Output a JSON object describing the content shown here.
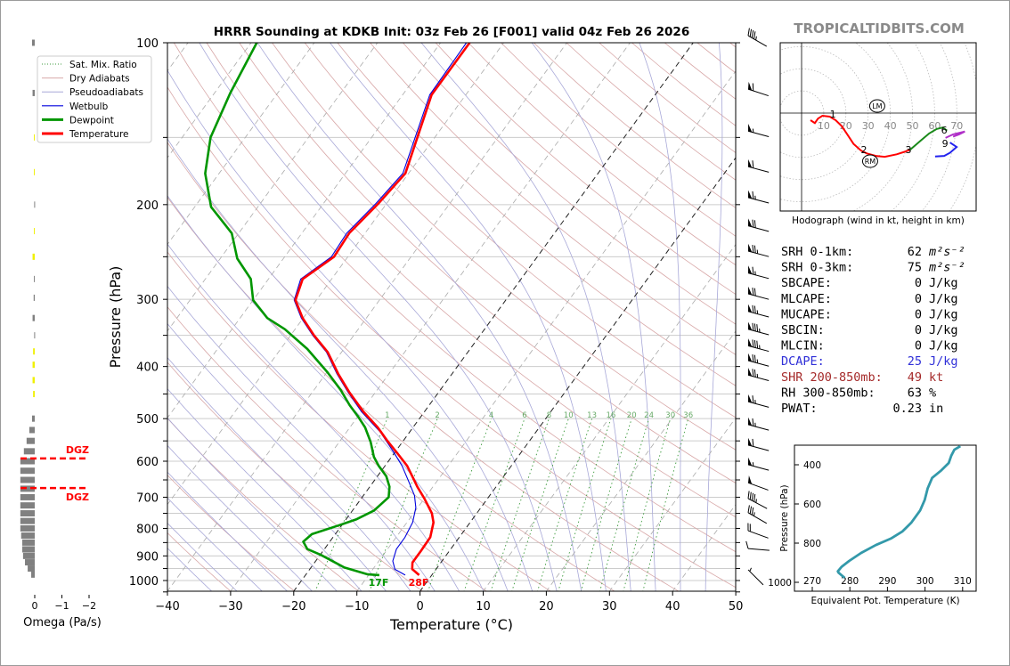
{
  "brand": "TROPICALTIDBITS.COM",
  "chart_data": [
    {
      "type": "line",
      "subtype": "skew-t log-p sounding",
      "title": "HRRR Sounding at KDKB Init: 03z Feb 26 [F001] valid 04z Feb 26 2026",
      "xlabel": "Temperature (°C)",
      "ylabel": "Pressure (hPa)",
      "xlim": [
        -40,
        50
      ],
      "ylim": [
        1050,
        100
      ],
      "y_scale": "log",
      "x_ticks": [
        "−40",
        "−30",
        "−20",
        "−10",
        "0",
        "10",
        "20",
        "30",
        "40",
        "50"
      ],
      "x_tick_values": [
        -40,
        -30,
        -20,
        -10,
        0,
        10,
        20,
        30,
        40,
        50
      ],
      "y_ticks": [
        "100",
        "200",
        "300",
        "400",
        "500",
        "600",
        "700",
        "800",
        "900",
        "1000"
      ],
      "y_tick_values": [
        100,
        200,
        300,
        400,
        500,
        600,
        700,
        800,
        900,
        1000
      ],
      "grid": true,
      "legend": {
        "placement": "upper-left",
        "entries": [
          {
            "label": "Sat. Mix. Ratio",
            "color": "#3c9a3c",
            "style": "dotted"
          },
          {
            "label": "Dry Adiabats",
            "color": "#d8a8a8",
            "style": "solid"
          },
          {
            "label": "Pseudoadiabats",
            "color": "#a8a8d8",
            "style": "solid"
          },
          {
            "label": "Wetbulb",
            "color": "#0000dd",
            "style": "solid"
          },
          {
            "label": "Dewpoint",
            "color": "#009600",
            "style": "solid"
          },
          {
            "label": "Temperature",
            "color": "#ff0000",
            "style": "solid"
          }
        ]
      },
      "mixing_ratio_labels": [
        "1",
        "2",
        "4",
        "6",
        "8",
        "10",
        "13",
        "16",
        "20",
        "24",
        "30",
        "36"
      ],
      "mixing_ratio_values": [
        1,
        2,
        4,
        6,
        8,
        10,
        13,
        16,
        20,
        24,
        30,
        36
      ],
      "surface_labels": {
        "dewpoint": "17F",
        "temperature": "28F"
      },
      "series": [
        {
          "name": "Temperature",
          "color": "#ff0000",
          "p": [
            977,
            952,
            926,
            880,
            831,
            780,
            750,
            704,
            669,
            644,
            612,
            582,
            550,
            519,
            485,
            446,
            413,
            376,
            350,
            325,
            301,
            275,
            250,
            226,
            199,
            175,
            125,
            100
          ],
          "t": [
            -2.0,
            -3.8,
            -4.5,
            -4.5,
            -4.6,
            -5.8,
            -7.1,
            -10.0,
            -12.5,
            -14.2,
            -16.5,
            -19.3,
            -22.5,
            -25.6,
            -29.7,
            -34.2,
            -38.0,
            -42.2,
            -46.3,
            -50.1,
            -53.3,
            -54.6,
            -52.2,
            -52.5,
            -51.3,
            -50.5,
            -55.4,
            -55.4
          ]
        },
        {
          "name": "Dewpoint",
          "color": "#009600",
          "p": [
            977,
            974,
            946,
            896,
            874,
            847,
            820,
            790,
            770,
            741,
            700,
            669,
            640,
            612,
            589,
            553,
            519,
            496,
            472,
            442,
            410,
            371,
            341,
            325,
            301,
            275,
            252,
            226,
            202,
            175,
            150,
            124,
            100
          ],
          "t": [
            -8.3,
            -10.2,
            -14.7,
            -19.9,
            -22.7,
            -24.2,
            -23.7,
            -20.5,
            -18.4,
            -16.6,
            -15.8,
            -16.9,
            -18.6,
            -21.0,
            -22.8,
            -25.0,
            -27.6,
            -29.9,
            -32.6,
            -35.8,
            -39.9,
            -45.8,
            -51.6,
            -55.7,
            -60.0,
            -62.8,
            -67.3,
            -71.1,
            -77.4,
            -82.2,
            -85.5,
            -87.5,
            -89.1
          ]
        },
        {
          "name": "Wetbulb",
          "color": "#0000dd",
          "p": [
            977,
            953,
            920,
            874,
            831,
            780,
            732,
            695,
            652,
            612,
            575,
            529,
            485,
            446,
            413,
            376,
            350,
            325,
            301,
            275,
            250,
            226,
            199,
            175,
            125,
            100
          ],
          "t": [
            -4.2,
            -6.5,
            -7.8,
            -8.6,
            -8.6,
            -9.1,
            -10.3,
            -11.9,
            -14.6,
            -17.3,
            -20.4,
            -24.7,
            -30.0,
            -34.4,
            -38.2,
            -42.4,
            -46.5,
            -50.3,
            -53.5,
            -54.9,
            -52.6,
            -52.9,
            -51.7,
            -50.9,
            -55.7,
            -55.9
          ]
        }
      ],
      "winds_kt": [
        {
          "p": 97,
          "dir": 300,
          "spd": 45
        },
        {
          "p": 122,
          "dir": 288,
          "spd": 60
        },
        {
          "p": 146,
          "dir": 285,
          "spd": 55
        },
        {
          "p": 170,
          "dir": 285,
          "spd": 60
        },
        {
          "p": 194,
          "dir": 285,
          "spd": 65
        },
        {
          "p": 219,
          "dir": 285,
          "spd": 70
        },
        {
          "p": 244,
          "dir": 285,
          "spd": 75
        },
        {
          "p": 268,
          "dir": 285,
          "spd": 65
        },
        {
          "p": 293,
          "dir": 285,
          "spd": 70
        },
        {
          "p": 316,
          "dir": 285,
          "spd": 75
        },
        {
          "p": 341,
          "dir": 285,
          "spd": 85
        },
        {
          "p": 366,
          "dir": 285,
          "spd": 85
        },
        {
          "p": 390,
          "dir": 285,
          "spd": 75
        },
        {
          "p": 415,
          "dir": 285,
          "spd": 75
        },
        {
          "p": 465,
          "dir": 285,
          "spd": 65
        },
        {
          "p": 513,
          "dir": 285,
          "spd": 65
        },
        {
          "p": 560,
          "dir": 285,
          "spd": 60
        },
        {
          "p": 609,
          "dir": 285,
          "spd": 55
        },
        {
          "p": 658,
          "dir": 290,
          "spd": 50
        },
        {
          "p": 704,
          "dir": 298,
          "spd": 45
        },
        {
          "p": 748,
          "dir": 300,
          "spd": 35
        },
        {
          "p": 808,
          "dir": 290,
          "spd": 20
        },
        {
          "p": 872,
          "dir": 275,
          "spd": 10
        },
        {
          "p": 955,
          "dir": 315,
          "spd": 5
        }
      ]
    },
    {
      "type": "line",
      "subtype": "hodograph",
      "caption": "Hodograph (wind in kt, height in km)",
      "ring_labels": [
        "10",
        "20",
        "30",
        "40",
        "50",
        "60",
        "70"
      ],
      "ring_values": [
        10,
        20,
        30,
        40,
        50,
        60,
        70
      ],
      "segments": [
        {
          "color": "#ff0000",
          "u": [
            4.0,
            6.0,
            7.4,
            9.4,
            12.7,
            15.4,
            18.1,
            20.8,
            23.4,
            26.8,
            29.4,
            33.5,
            37.5,
            42.9,
            46.9,
            48.9
          ],
          "v": [
            -3.2,
            -4.5,
            -2.5,
            -1.2,
            -1.6,
            -3.2,
            -5.9,
            -9.9,
            -13.9,
            -16.9,
            -18.2,
            -19.3,
            -19.7,
            -18.6,
            -17.3,
            -16.6
          ]
        },
        {
          "color": "#1a8a1a",
          "u": [
            48.9,
            53.5,
            57.5,
            60.9,
            63.6,
            65.6
          ],
          "v": [
            -16.6,
            -12.6,
            -9.2,
            -7.2,
            -6.5,
            -7.9
          ]
        },
        {
          "color": "#b030c8",
          "u": [
            64.9,
            68.3,
            73.6,
            71.0,
            68.3
          ],
          "v": [
            -11.2,
            -9.6,
            -8.3,
            -9.6,
            -10.6
          ]
        },
        {
          "color": "#2222ee",
          "u": [
            66.9,
            69.9,
            66.9,
            64.3,
            60.2
          ],
          "v": [
            -13.3,
            -15.3,
            -17.9,
            -19.3,
            -19.6
          ]
        }
      ],
      "height_labels": [
        {
          "text": "1",
          "u": 13.3,
          "v": -1.2
        },
        {
          "text": "2",
          "u": 28.1,
          "v": -17.3
        },
        {
          "text": "3",
          "u": 48.2,
          "v": -16.5
        },
        {
          "text": "6",
          "u": 66.3,
          "v": -8.8
        },
        {
          "text": "9",
          "u": 65.5,
          "v": -12.0
        }
      ],
      "storm_motion": [
        {
          "text": "LM",
          "u": 34.1,
          "v": 3.2
        },
        {
          "text": "RM",
          "u": 30.9,
          "v": -21.7
        }
      ]
    },
    {
      "type": "line",
      "subtype": "equivalent potential temperature profile",
      "xlabel": "Equivalent Pot. Temperature (K)",
      "ylabel": "Pressure (hPa)",
      "xlim": [
        265.3,
        314.2
      ],
      "ylim": [
        1055,
        300
      ],
      "x_ticks": [
        "270",
        "280",
        "290",
        "300",
        "310"
      ],
      "x_tick_values": [
        270,
        280,
        290,
        300,
        310
      ],
      "y_ticks": [
        "400",
        "600",
        "800",
        "1000"
      ],
      "y_tick_values": [
        400,
        600,
        800,
        1000
      ],
      "color": "#3399aa",
      "p": [
        977,
        951,
        944,
        921,
        891,
        850,
        810,
        777,
        740,
        694,
        633,
        580,
        520,
        467,
        429,
        391,
        353,
        323,
        305
      ],
      "theta_e": [
        278.6,
        277.0,
        276.8,
        277.8,
        279.8,
        283.0,
        286.9,
        290.9,
        294.0,
        296.4,
        298.7,
        299.9,
        300.7,
        301.9,
        304.3,
        306.3,
        307.0,
        307.8,
        309.4
      ]
    },
    {
      "type": "bar",
      "subtype": "omega profile (horizontal bars)",
      "xlabel": "Omega (Pa/s)",
      "xlim": [
        0.5,
        -2.2
      ],
      "x_ticks": [
        "0",
        "−1",
        "−2"
      ],
      "x_tick_values": [
        0,
        -1,
        -2
      ],
      "dgz_label": "DGZ",
      "dgz_pressures": [
        593,
        673
      ],
      "dgz_color": "#ff0000",
      "bars": [
        {
          "p": 100,
          "omega": 0.1,
          "color": "#808080"
        },
        {
          "p": 124,
          "omega": 0.08,
          "color": "#808080"
        },
        {
          "p": 150,
          "omega": 0.03,
          "color": "#f0f000"
        },
        {
          "p": 174,
          "omega": 0.03,
          "color": "#f0f000"
        },
        {
          "p": 200,
          "omega": 0.02,
          "color": "#808080"
        },
        {
          "p": 224,
          "omega": 0.03,
          "color": "#f0f000"
        },
        {
          "p": 250,
          "omega": 0.08,
          "color": "#f0f000"
        },
        {
          "p": 275,
          "omega": 0.03,
          "color": "#808080"
        },
        {
          "p": 298,
          "omega": 0.04,
          "color": "#808080"
        },
        {
          "p": 325,
          "omega": 0.08,
          "color": "#808080"
        },
        {
          "p": 350,
          "omega": 0.02,
          "color": "#808080"
        },
        {
          "p": 375,
          "omega": 0.06,
          "color": "#f0f000"
        },
        {
          "p": 397,
          "omega": 0.08,
          "color": "#f0f000"
        },
        {
          "p": 424,
          "omega": 0.08,
          "color": "#f0f000"
        },
        {
          "p": 450,
          "omega": 0.06,
          "color": "#f0f000"
        },
        {
          "p": 500,
          "omega": 0.1,
          "color": "#808080"
        },
        {
          "p": 525,
          "omega": 0.2,
          "color": "#808080"
        },
        {
          "p": 550,
          "omega": 0.3,
          "color": "#808080"
        },
        {
          "p": 575,
          "omega": 0.4,
          "color": "#808080"
        },
        {
          "p": 600,
          "omega": 0.53,
          "color": "#808080"
        },
        {
          "p": 625,
          "omega": 0.53,
          "color": "#808080"
        },
        {
          "p": 650,
          "omega": 0.53,
          "color": "#808080"
        },
        {
          "p": 675,
          "omega": 0.53,
          "color": "#808080"
        },
        {
          "p": 700,
          "omega": 0.53,
          "color": "#808080"
        },
        {
          "p": 725,
          "omega": 0.53,
          "color": "#808080"
        },
        {
          "p": 750,
          "omega": 0.53,
          "color": "#808080"
        },
        {
          "p": 775,
          "omega": 0.53,
          "color": "#808080"
        },
        {
          "p": 800,
          "omega": 0.53,
          "color": "#808080"
        },
        {
          "p": 825,
          "omega": 0.5,
          "color": "#808080"
        },
        {
          "p": 850,
          "omega": 0.46,
          "color": "#808080"
        },
        {
          "p": 875,
          "omega": 0.46,
          "color": "#808080"
        },
        {
          "p": 900,
          "omega": 0.43,
          "color": "#808080"
        },
        {
          "p": 925,
          "omega": 0.36,
          "color": "#808080"
        },
        {
          "p": 950,
          "omega": 0.26,
          "color": "#808080"
        },
        {
          "p": 975,
          "omega": 0.13,
          "color": "#808080"
        }
      ]
    }
  ],
  "stats": [
    {
      "label": "SRH 0-1km:",
      "value": "62",
      "unit": "m²s⁻²",
      "color": "#000000"
    },
    {
      "label": "SRH 0-3km:",
      "value": "75",
      "unit": "m²s⁻²",
      "color": "#000000"
    },
    {
      "label": "SBCAPE:",
      "value": "0",
      "unit": "J/kg",
      "color": "#000000"
    },
    {
      "label": "MLCAPE:",
      "value": "0",
      "unit": "J/kg",
      "color": "#000000"
    },
    {
      "label": "MUCAPE:",
      "value": "0",
      "unit": "J/kg",
      "color": "#000000"
    },
    {
      "label": "SBCIN:",
      "value": "0",
      "unit": "J/kg",
      "color": "#000000"
    },
    {
      "label": "MLCIN:",
      "value": "0",
      "unit": "J/kg",
      "color": "#000000"
    },
    {
      "label": "DCAPE:",
      "value": "25",
      "unit": "J/kg",
      "color": "#3030d8"
    },
    {
      "label": "SHR 200-850mb:",
      "value": "49",
      "unit": "kt",
      "color": "#a52a2a"
    },
    {
      "label": "RH 300-850mb:",
      "value": "63",
      "unit": "%",
      "color": "#000000"
    },
    {
      "label": "PWAT:",
      "value": "0.23",
      "unit": "in",
      "color": "#000000"
    }
  ]
}
